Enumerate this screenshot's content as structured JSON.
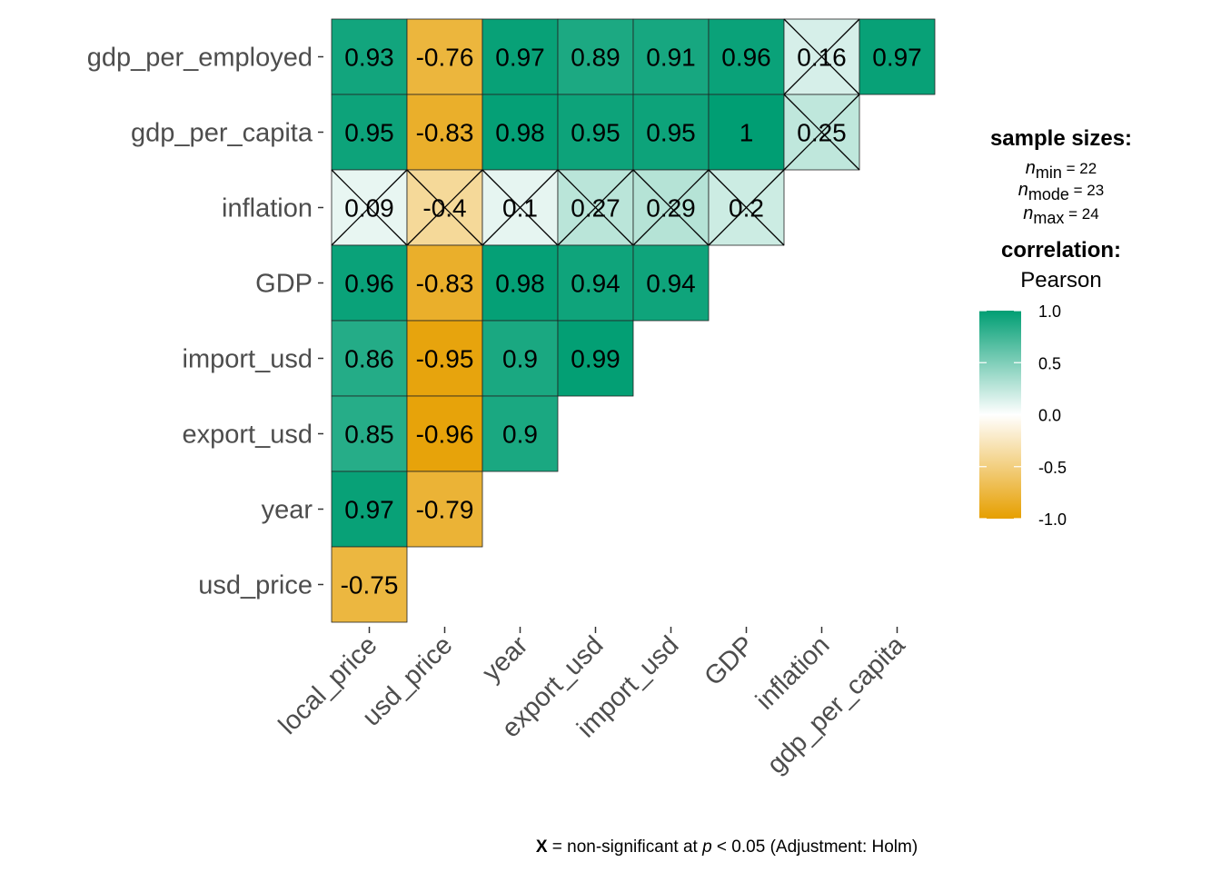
{
  "chart_data": {
    "type": "heatmap",
    "x_labels": [
      "local_price",
      "usd_price",
      "year",
      "export_usd",
      "import_usd",
      "GDP",
      "inflation",
      "gdp_per_capita"
    ],
    "y_labels": [
      "gdp_per_employed",
      "gdp_per_capita",
      "inflation",
      "GDP",
      "import_usd",
      "export_usd",
      "year",
      "usd_price"
    ],
    "cells": [
      {
        "row": "gdp_per_employed",
        "col": "local_price",
        "value": 0.93,
        "label": "0.93",
        "nonsig": false
      },
      {
        "row": "gdp_per_employed",
        "col": "usd_price",
        "value": -0.76,
        "label": "-0.76",
        "nonsig": false
      },
      {
        "row": "gdp_per_employed",
        "col": "year",
        "value": 0.97,
        "label": "0.97",
        "nonsig": false
      },
      {
        "row": "gdp_per_employed",
        "col": "export_usd",
        "value": 0.89,
        "label": "0.89",
        "nonsig": false
      },
      {
        "row": "gdp_per_employed",
        "col": "import_usd",
        "value": 0.91,
        "label": "0.91",
        "nonsig": false
      },
      {
        "row": "gdp_per_employed",
        "col": "GDP",
        "value": 0.96,
        "label": "0.96",
        "nonsig": false
      },
      {
        "row": "gdp_per_employed",
        "col": "inflation",
        "value": 0.16,
        "label": "0.16",
        "nonsig": true
      },
      {
        "row": "gdp_per_employed",
        "col": "gdp_per_capita",
        "value": 0.97,
        "label": "0.97",
        "nonsig": false
      },
      {
        "row": "gdp_per_capita",
        "col": "local_price",
        "value": 0.95,
        "label": "0.95",
        "nonsig": false
      },
      {
        "row": "gdp_per_capita",
        "col": "usd_price",
        "value": -0.83,
        "label": "-0.83",
        "nonsig": false
      },
      {
        "row": "gdp_per_capita",
        "col": "year",
        "value": 0.98,
        "label": "0.98",
        "nonsig": false
      },
      {
        "row": "gdp_per_capita",
        "col": "export_usd",
        "value": 0.95,
        "label": "0.95",
        "nonsig": false
      },
      {
        "row": "gdp_per_capita",
        "col": "import_usd",
        "value": 0.95,
        "label": "0.95",
        "nonsig": false
      },
      {
        "row": "gdp_per_capita",
        "col": "GDP",
        "value": 1,
        "label": "1",
        "nonsig": false
      },
      {
        "row": "gdp_per_capita",
        "col": "inflation",
        "value": 0.25,
        "label": "0.25",
        "nonsig": true
      },
      {
        "row": "inflation",
        "col": "local_price",
        "value": 0.09,
        "label": "0.09",
        "nonsig": true
      },
      {
        "row": "inflation",
        "col": "usd_price",
        "value": -0.4,
        "label": "-0.4",
        "nonsig": true
      },
      {
        "row": "inflation",
        "col": "year",
        "value": 0.1,
        "label": "0.1",
        "nonsig": true
      },
      {
        "row": "inflation",
        "col": "export_usd",
        "value": 0.27,
        "label": "0.27",
        "nonsig": true
      },
      {
        "row": "inflation",
        "col": "import_usd",
        "value": 0.29,
        "label": "0.29",
        "nonsig": true
      },
      {
        "row": "inflation",
        "col": "GDP",
        "value": 0.2,
        "label": "0.2",
        "nonsig": true
      },
      {
        "row": "GDP",
        "col": "local_price",
        "value": 0.96,
        "label": "0.96",
        "nonsig": false
      },
      {
        "row": "GDP",
        "col": "usd_price",
        "value": -0.83,
        "label": "-0.83",
        "nonsig": false
      },
      {
        "row": "GDP",
        "col": "year",
        "value": 0.98,
        "label": "0.98",
        "nonsig": false
      },
      {
        "row": "GDP",
        "col": "export_usd",
        "value": 0.94,
        "label": "0.94",
        "nonsig": false
      },
      {
        "row": "GDP",
        "col": "import_usd",
        "value": 0.94,
        "label": "0.94",
        "nonsig": false
      },
      {
        "row": "import_usd",
        "col": "local_price",
        "value": 0.86,
        "label": "0.86",
        "nonsig": false
      },
      {
        "row": "import_usd",
        "col": "usd_price",
        "value": -0.95,
        "label": "-0.95",
        "nonsig": false
      },
      {
        "row": "import_usd",
        "col": "year",
        "value": 0.9,
        "label": "0.9",
        "nonsig": false
      },
      {
        "row": "import_usd",
        "col": "export_usd",
        "value": 0.99,
        "label": "0.99",
        "nonsig": false
      },
      {
        "row": "export_usd",
        "col": "local_price",
        "value": 0.85,
        "label": "0.85",
        "nonsig": false
      },
      {
        "row": "export_usd",
        "col": "usd_price",
        "value": -0.96,
        "label": "-0.96",
        "nonsig": false
      },
      {
        "row": "export_usd",
        "col": "year",
        "value": 0.9,
        "label": "0.9",
        "nonsig": false
      },
      {
        "row": "year",
        "col": "local_price",
        "value": 0.97,
        "label": "0.97",
        "nonsig": false
      },
      {
        "row": "year",
        "col": "usd_price",
        "value": -0.79,
        "label": "-0.79",
        "nonsig": false
      },
      {
        "row": "usd_price",
        "col": "local_price",
        "value": -0.75,
        "label": "-0.75",
        "nonsig": false
      }
    ],
    "color_scale": {
      "low": "#E69F00",
      "mid": "#FFFFFF",
      "high": "#009E73",
      "domain": [
        -1,
        0,
        1
      ]
    },
    "legend": {
      "sample_title": "sample sizes:",
      "n_min_label": "n",
      "n_min_sub": "min",
      "n_min_value": " = 22",
      "n_mode_label": "n",
      "n_mode_sub": "mode",
      "n_mode_value": " = 23",
      "n_max_label": "n",
      "n_max_sub": "max",
      "n_max_value": " = 24",
      "corr_title": "correlation:",
      "corr_method": "Pearson",
      "ticks": [
        1.0,
        0.5,
        0.0,
        -0.5,
        -1.0
      ],
      "tick_labels": [
        "1.0",
        "0.5",
        "0.0",
        "-0.5",
        "-1.0"
      ],
      "placement": "right"
    },
    "caption": {
      "bold": "X",
      "text1": " = non-significant at ",
      "italic": "p",
      "text2": " < 0.05 (Adjustment: Holm)"
    }
  }
}
